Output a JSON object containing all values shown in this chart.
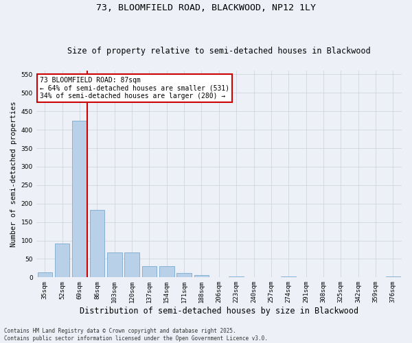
{
  "title": "73, BLOOMFIELD ROAD, BLACKWOOD, NP12 1LY",
  "subtitle": "Size of property relative to semi-detached houses in Blackwood",
  "xlabel": "Distribution of semi-detached houses by size in Blackwood",
  "ylabel": "Number of semi-detached properties",
  "annotation_title": "73 BLOOMFIELD ROAD: 87sqm",
  "annotation_line2": "← 64% of semi-detached houses are smaller (531)",
  "annotation_line3": "34% of semi-detached houses are larger (280) →",
  "footer_line1": "Contains HM Land Registry data © Crown copyright and database right 2025.",
  "footer_line2": "Contains public sector information licensed under the Open Government Licence v3.0.",
  "bins": [
    "35sqm",
    "52sqm",
    "69sqm",
    "86sqm",
    "103sqm",
    "120sqm",
    "137sqm",
    "154sqm",
    "171sqm",
    "188sqm",
    "206sqm",
    "223sqm",
    "240sqm",
    "257sqm",
    "274sqm",
    "291sqm",
    "308sqm",
    "325sqm",
    "342sqm",
    "359sqm",
    "376sqm"
  ],
  "values": [
    14,
    92,
    425,
    183,
    68,
    68,
    30,
    30,
    12,
    7,
    0,
    3,
    0,
    0,
    3,
    0,
    0,
    0,
    0,
    0,
    3
  ],
  "bar_color": "#b8d0e8",
  "bar_edge_color": "#7aaacf",
  "vline_color": "#cc0000",
  "vline_x_index": 2,
  "ylim": [
    0,
    560
  ],
  "yticks": [
    0,
    50,
    100,
    150,
    200,
    250,
    300,
    350,
    400,
    450,
    500,
    550
  ],
  "annotation_box_color": "#cc0000",
  "grid_color": "#c8d0dc",
  "background_color": "#edf1f7",
  "title_fontsize": 9.5,
  "subtitle_fontsize": 8.5,
  "ylabel_fontsize": 7.5,
  "xlabel_fontsize": 8.5,
  "tick_fontsize": 6.5,
  "annotation_fontsize": 7,
  "footer_fontsize": 5.5
}
